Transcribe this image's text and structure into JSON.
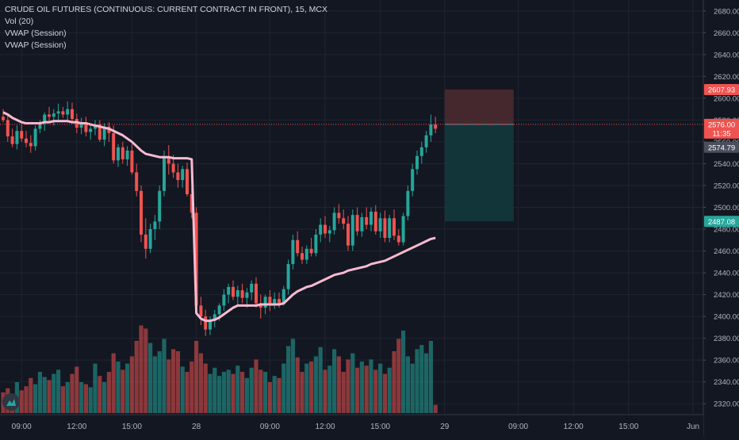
{
  "header": {
    "symbol_line": "CRUDE OIL FUTURES (CONTINUOUS: CURRENT CONTRACT IN FRONT), 15, MCX",
    "indicators": [
      "Vol (20)",
      "VWAP (Session)",
      "VWAP (Session)"
    ]
  },
  "colors": {
    "background": "#131722",
    "grid": "#1f2430",
    "up": "#26a69a",
    "down": "#ef5350",
    "vwap": "#f8bbd0",
    "stop_zone": "#4a2a30",
    "target_zone": "#13383d",
    "current_price_line": "#ef5350"
  },
  "price_axis": {
    "ticks": [
      "2680.00",
      "2660.00",
      "2640.00",
      "2620.00",
      "2600.00",
      "2580.00",
      "2560.00",
      "2540.00",
      "2520.00",
      "2500.00",
      "2480.00",
      "2460.00",
      "2440.00",
      "2420.00",
      "2400.00",
      "2380.00",
      "2360.00",
      "2340.00",
      "2320.00"
    ],
    "labels": [
      {
        "text": "2607.93",
        "value": 2607.93,
        "color": "#ef5350"
      },
      {
        "text": "2576.00",
        "value": 2576.0,
        "color": "#ef5350"
      },
      {
        "text": "11:35",
        "value": 2568.0,
        "color": "#ef5350"
      },
      {
        "text": "2574.79",
        "value": 2555.0,
        "color": "#4a4f5c"
      },
      {
        "text": "2487.08",
        "value": 2487.08,
        "color": "#26a69a"
      }
    ]
  },
  "time_axis": {
    "labels": [
      {
        "text": "09:00",
        "bar": 4
      },
      {
        "text": "12:00",
        "bar": 16
      },
      {
        "text": "15:00",
        "bar": 28
      },
      {
        "text": "28",
        "bar": 42
      },
      {
        "text": "09:00",
        "bar": 58
      },
      {
        "text": "12:00",
        "bar": 70
      },
      {
        "text": "15:00",
        "bar": 82
      },
      {
        "text": "29",
        "bar": 96
      },
      {
        "text": "09:00",
        "bar": 112
      },
      {
        "text": "12:00",
        "bar": 124
      },
      {
        "text": "15:00",
        "bar": 136
      },
      {
        "text": "Jun",
        "bar": 150
      }
    ]
  },
  "position_tool": {
    "stop": 2607.93,
    "entry": 2576.0,
    "target": 2487.08,
    "start_bar": 96,
    "end_bar": 111
  },
  "chart_data": {
    "type": "candlestick",
    "title": "CRUDE OIL FUTURES (CONTINUOUS: CURRENT CONTRACT IN FRONT), 15, MCX",
    "ylim": [
      2310,
      2690
    ],
    "volume_range": [
      0,
      100
    ],
    "series": [
      {
        "name": "Price",
        "ohlc": [
          [
            2583,
            2590,
            2578,
            2580
          ],
          [
            2580,
            2584,
            2560,
            2565
          ],
          [
            2565,
            2572,
            2555,
            2558
          ],
          [
            2558,
            2575,
            2553,
            2570
          ],
          [
            2570,
            2576,
            2560,
            2563
          ],
          [
            2563,
            2570,
            2555,
            2559
          ],
          [
            2559,
            2566,
            2550,
            2556
          ],
          [
            2556,
            2575,
            2552,
            2572
          ],
          [
            2572,
            2580,
            2568,
            2577
          ],
          [
            2577,
            2587,
            2570,
            2585
          ],
          [
            2585,
            2592,
            2578,
            2583
          ],
          [
            2583,
            2590,
            2575,
            2586
          ],
          [
            2586,
            2595,
            2580,
            2588
          ],
          [
            2588,
            2592,
            2582,
            2585
          ],
          [
            2585,
            2597,
            2580,
            2590
          ],
          [
            2590,
            2596,
            2578,
            2581
          ],
          [
            2581,
            2586,
            2568,
            2573
          ],
          [
            2573,
            2582,
            2567,
            2578
          ],
          [
            2578,
            2583,
            2565,
            2569
          ],
          [
            2569,
            2576,
            2562,
            2572
          ],
          [
            2572,
            2580,
            2566,
            2576
          ],
          [
            2576,
            2580,
            2560,
            2562
          ],
          [
            2562,
            2577,
            2556,
            2574
          ],
          [
            2574,
            2578,
            2560,
            2568
          ],
          [
            2568,
            2575,
            2540,
            2543
          ],
          [
            2543,
            2558,
            2537,
            2555
          ],
          [
            2555,
            2560,
            2540,
            2544
          ],
          [
            2544,
            2556,
            2538,
            2552
          ],
          [
            2552,
            2558,
            2530,
            2532
          ],
          [
            2532,
            2540,
            2510,
            2515
          ],
          [
            2515,
            2520,
            2468,
            2475
          ],
          [
            2475,
            2490,
            2453,
            2462
          ],
          [
            2462,
            2485,
            2458,
            2480
          ],
          [
            2480,
            2493,
            2470,
            2487
          ],
          [
            2487,
            2520,
            2480,
            2515
          ],
          [
            2515,
            2552,
            2510,
            2545
          ],
          [
            2545,
            2557,
            2530,
            2540
          ],
          [
            2540,
            2548,
            2527,
            2532
          ],
          [
            2532,
            2540,
            2518,
            2525
          ],
          [
            2525,
            2538,
            2518,
            2535
          ],
          [
            2535,
            2541,
            2510,
            2512
          ],
          [
            2512,
            2518,
            2490,
            2495
          ],
          [
            2495,
            2500,
            2405,
            2410
          ],
          [
            2410,
            2418,
            2392,
            2400
          ],
          [
            2400,
            2406,
            2382,
            2388
          ],
          [
            2388,
            2400,
            2383,
            2396
          ],
          [
            2396,
            2406,
            2390,
            2402
          ],
          [
            2402,
            2412,
            2396,
            2410
          ],
          [
            2410,
            2425,
            2405,
            2420
          ],
          [
            2420,
            2430,
            2412,
            2427
          ],
          [
            2427,
            2433,
            2415,
            2418
          ],
          [
            2418,
            2428,
            2410,
            2424
          ],
          [
            2424,
            2430,
            2412,
            2417
          ],
          [
            2417,
            2426,
            2408,
            2422
          ],
          [
            2422,
            2433,
            2415,
            2430
          ],
          [
            2430,
            2436,
            2408,
            2412
          ],
          [
            2412,
            2420,
            2398,
            2408
          ],
          [
            2408,
            2420,
            2402,
            2418
          ],
          [
            2418,
            2424,
            2405,
            2410
          ],
          [
            2410,
            2422,
            2407,
            2416
          ],
          [
            2416,
            2422,
            2408,
            2412
          ],
          [
            2412,
            2428,
            2410,
            2425
          ],
          [
            2425,
            2452,
            2420,
            2448
          ],
          [
            2448,
            2475,
            2443,
            2470
          ],
          [
            2470,
            2478,
            2455,
            2458
          ],
          [
            2458,
            2464,
            2448,
            2452
          ],
          [
            2452,
            2465,
            2448,
            2462
          ],
          [
            2462,
            2472,
            2455,
            2458
          ],
          [
            2458,
            2480,
            2455,
            2475
          ],
          [
            2475,
            2490,
            2468,
            2484
          ],
          [
            2484,
            2492,
            2472,
            2476
          ],
          [
            2476,
            2483,
            2468,
            2479
          ],
          [
            2479,
            2500,
            2475,
            2495
          ],
          [
            2495,
            2503,
            2485,
            2490
          ],
          [
            2490,
            2498,
            2480,
            2485
          ],
          [
            2485,
            2492,
            2460,
            2465
          ],
          [
            2465,
            2498,
            2460,
            2493
          ],
          [
            2493,
            2500,
            2474,
            2478
          ],
          [
            2478,
            2495,
            2473,
            2491
          ],
          [
            2491,
            2500,
            2480,
            2484
          ],
          [
            2484,
            2500,
            2478,
            2496
          ],
          [
            2496,
            2502,
            2475,
            2478
          ],
          [
            2478,
            2495,
            2472,
            2490
          ],
          [
            2490,
            2497,
            2468,
            2472
          ],
          [
            2472,
            2493,
            2468,
            2490
          ],
          [
            2490,
            2498,
            2470,
            2474
          ],
          [
            2474,
            2480,
            2465,
            2468
          ],
          [
            2468,
            2495,
            2465,
            2492
          ],
          [
            2492,
            2520,
            2488,
            2515
          ],
          [
            2515,
            2540,
            2510,
            2535
          ],
          [
            2535,
            2552,
            2530,
            2547
          ],
          [
            2547,
            2560,
            2540,
            2555
          ],
          [
            2555,
            2570,
            2550,
            2566
          ],
          [
            2566,
            2585,
            2560,
            2576
          ],
          [
            2576,
            2583,
            2568,
            2572
          ]
        ]
      },
      {
        "name": "Vol",
        "values": [
          20,
          24,
          18,
          30,
          22,
          26,
          34,
          28,
          40,
          35,
          32,
          38,
          42,
          26,
          30,
          38,
          45,
          30,
          28,
          25,
          48,
          36,
          30,
          40,
          58,
          50,
          42,
          48,
          55,
          70,
          85,
          82,
          68,
          55,
          60,
          72,
          52,
          62,
          60,
          45,
          40,
          50,
          70,
          58,
          48,
          38,
          44,
          36,
          40,
          42,
          38,
          46,
          40,
          34,
          44,
          52,
          42,
          40,
          30,
          36,
          34,
          48,
          65,
          72,
          54,
          40,
          48,
          50,
          55,
          64,
          42,
          46,
          62,
          55,
          40,
          52,
          58,
          44,
          50,
          46,
          52,
          42,
          48,
          38,
          44,
          60,
          72,
          80,
          55,
          48,
          62,
          66,
          58,
          70,
          8
        ]
      },
      {
        "name": "VWAP (Session)",
        "values": [
          2587,
          2585,
          2582,
          2580,
          2578,
          2577,
          2577,
          2577,
          2577,
          2578,
          2578,
          2579,
          2579,
          2579,
          2579,
          2578,
          2578,
          2577,
          2577,
          2576,
          2575,
          2574,
          2573,
          2572,
          2570,
          2568,
          2566,
          2563,
          2560,
          2556,
          2552,
          2549,
          2548,
          2547,
          2546,
          2546,
          2546,
          2545,
          2545,
          2545,
          2545,
          2544,
          2403,
          2398,
          2396,
          2396,
          2397,
          2399,
          2402,
          2405,
          2408,
          2410,
          2410,
          2410,
          2410,
          2410,
          2411,
          2411,
          2411,
          2411,
          2411,
          2412,
          2416,
          2420,
          2423,
          2425,
          2427,
          2428,
          2430,
          2432,
          2434,
          2436,
          2438,
          2439,
          2440,
          2442,
          2443,
          2444,
          2445,
          2446,
          2448,
          2449,
          2450,
          2451,
          2453,
          2455,
          2457,
          2459,
          2461,
          2463,
          2465,
          2467,
          2469,
          2471,
          2472
        ]
      }
    ]
  }
}
